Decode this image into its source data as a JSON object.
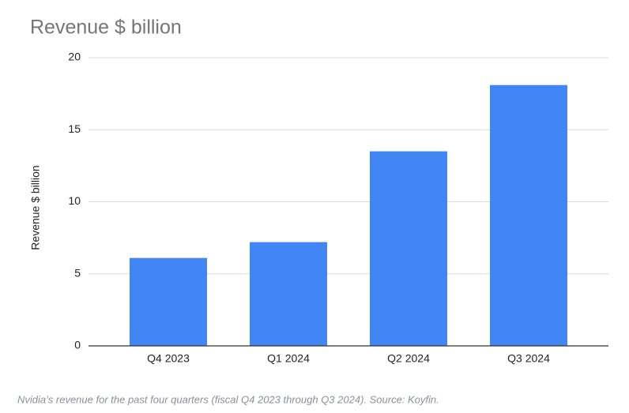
{
  "chart_data": {
    "type": "bar",
    "title": "Revenue $ billion",
    "y_label": "Revenue $ billion",
    "categories": [
      "Q4 2023",
      "Q1 2024",
      "Q2 2024",
      "Q3 2024"
    ],
    "values": [
      6.1,
      7.2,
      13.5,
      18.1
    ],
    "color": "#4285f4",
    "ylim": [
      0,
      20
    ],
    "yticks": [
      0,
      5,
      10,
      15,
      20
    ],
    "grid": true
  },
  "caption": "Nvidia’s revenue for the past four quarters (fiscal Q4 2023 through Q3 2024). Source: Koyfin."
}
